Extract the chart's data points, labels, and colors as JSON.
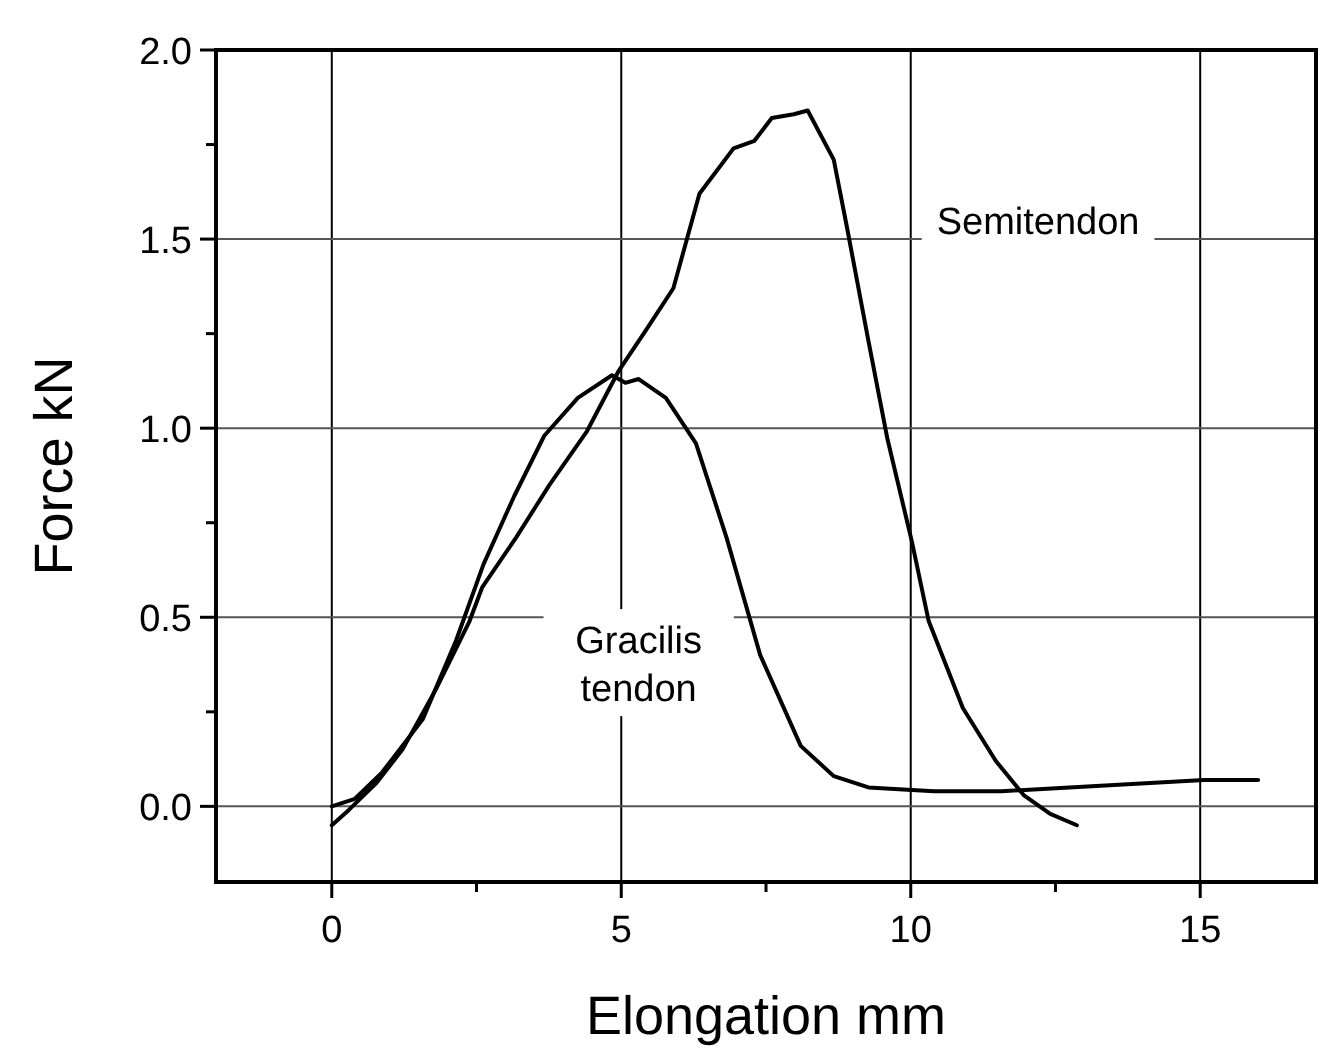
{
  "chart_data": {
    "type": "line",
    "xlabel": "Elongation mm",
    "ylabel": "Force kN",
    "xlim": [
      -2,
      17
    ],
    "ylim": [
      -0.2,
      2.0
    ],
    "xticks": [
      0,
      {
        "value": 2.5,
        "label": null
      },
      5,
      {
        "value": 7.5,
        "label": null
      },
      10,
      {
        "value": 12.5,
        "label": null
      },
      15
    ],
    "yticks": [
      {
        "value": 0,
        "label": "0.0"
      },
      {
        "value": 0.25,
        "label": null
      },
      {
        "value": 0.5,
        "label": "0.5"
      },
      {
        "value": 0.75,
        "label": null
      },
      {
        "value": 1,
        "label": "1.0"
      },
      {
        "value": 1.25,
        "label": null
      },
      {
        "value": 1.5,
        "label": "1.5"
      },
      {
        "value": 1.75,
        "label": null
      },
      {
        "value": 2,
        "label": "2.0"
      }
    ],
    "grid": true,
    "marker": "none",
    "line_style": "solid",
    "series": [
      {
        "name": "Semitendon",
        "color": "#000000",
        "x": [
          0,
          0.29,
          0.76,
          1.22,
          1.8,
          2.38,
          2.6,
          3.18,
          3.76,
          4.4,
          4.95,
          5.43,
          5.9,
          6.35,
          6.94,
          7.3,
          7.6,
          7.98,
          8.22,
          8.67,
          8.9,
          9.27,
          9.6,
          10.02,
          10.31,
          10.9,
          11.47,
          11.95,
          12.41,
          12.87
        ],
        "values": [
          -0.05,
          -0.01,
          0.06,
          0.15,
          0.31,
          0.49,
          0.58,
          0.71,
          0.85,
          0.99,
          1.15,
          1.26,
          1.37,
          1.62,
          1.74,
          1.76,
          1.82,
          1.83,
          1.84,
          1.71,
          1.53,
          1.23,
          0.97,
          0.7,
          0.49,
          0.26,
          0.12,
          0.03,
          -0.02,
          -0.05
        ]
      },
      {
        "name": "Gracilis tendon",
        "color": "#000000",
        "x": [
          0,
          0.4,
          0.87,
          1.57,
          2.15,
          2.62,
          3.15,
          3.67,
          4.25,
          4.84,
          5.07,
          5.3,
          5.77,
          6.29,
          6.82,
          7.4,
          8.1,
          8.67,
          9.27,
          10.4,
          11.57,
          12.74,
          13.9,
          15.07,
          16.0
        ],
        "values": [
          0,
          0.02,
          0.09,
          0.23,
          0.44,
          0.64,
          0.82,
          0.98,
          1.08,
          1.14,
          1.12,
          1.13,
          1.08,
          0.96,
          0.71,
          0.4,
          0.16,
          0.08,
          0.05,
          0.04,
          0.04,
          0.05,
          0.06,
          0.07,
          0.07
        ]
      }
    ]
  }
}
